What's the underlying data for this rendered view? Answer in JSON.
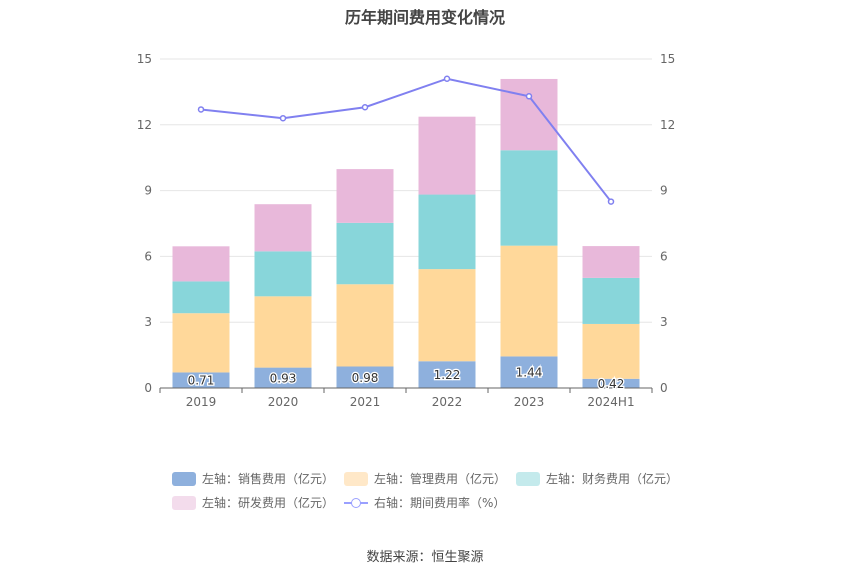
{
  "chart_data": {
    "type": "bar",
    "title": "历年期间费用变化情况",
    "categories": [
      "2019",
      "2020",
      "2021",
      "2022",
      "2023",
      "2024H1"
    ],
    "stacked": true,
    "ylim": [
      0,
      15
    ],
    "y_ticks": [
      "0",
      "3",
      "6",
      "9",
      "12",
      "15"
    ],
    "y2lim": [
      0,
      15
    ],
    "y2_ticks": [
      "0",
      "3",
      "6",
      "9",
      "12",
      "15"
    ],
    "grid": true,
    "legend_position": "bottom",
    "series": [
      {
        "name": "左轴：销售费用（亿元）",
        "type": "bar",
        "axis": "left",
        "color": "#8eb0dd",
        "values": [
          0.71,
          0.93,
          0.98,
          1.22,
          1.44,
          0.42
        ],
        "labels": [
          "0.71",
          "0.93",
          "0.98",
          "1.22",
          "1.44",
          "0.42"
        ]
      },
      {
        "name": "左轴：管理费用（亿元）",
        "type": "bar",
        "axis": "left",
        "color": "#ffd89a",
        "values": [
          2.7,
          3.25,
          3.75,
          4.2,
          5.05,
          2.5
        ]
      },
      {
        "name": "左轴：财务费用（亿元）",
        "type": "bar",
        "axis": "left",
        "color": "#88d6da",
        "values": [
          1.45,
          2.05,
          2.8,
          3.4,
          4.35,
          2.1
        ]
      },
      {
        "name": "左轴：研发费用（亿元）",
        "type": "bar",
        "axis": "left",
        "color": "#e8b8da",
        "values": [
          1.6,
          2.15,
          2.45,
          3.55,
          3.25,
          1.45
        ]
      },
      {
        "name": "右轴：期间费用率（%）",
        "type": "line",
        "axis": "right",
        "color": "#8080f0",
        "values": [
          12.7,
          12.3,
          12.8,
          14.1,
          13.3,
          8.5
        ]
      }
    ]
  },
  "source": "数据来源：恒生聚源"
}
